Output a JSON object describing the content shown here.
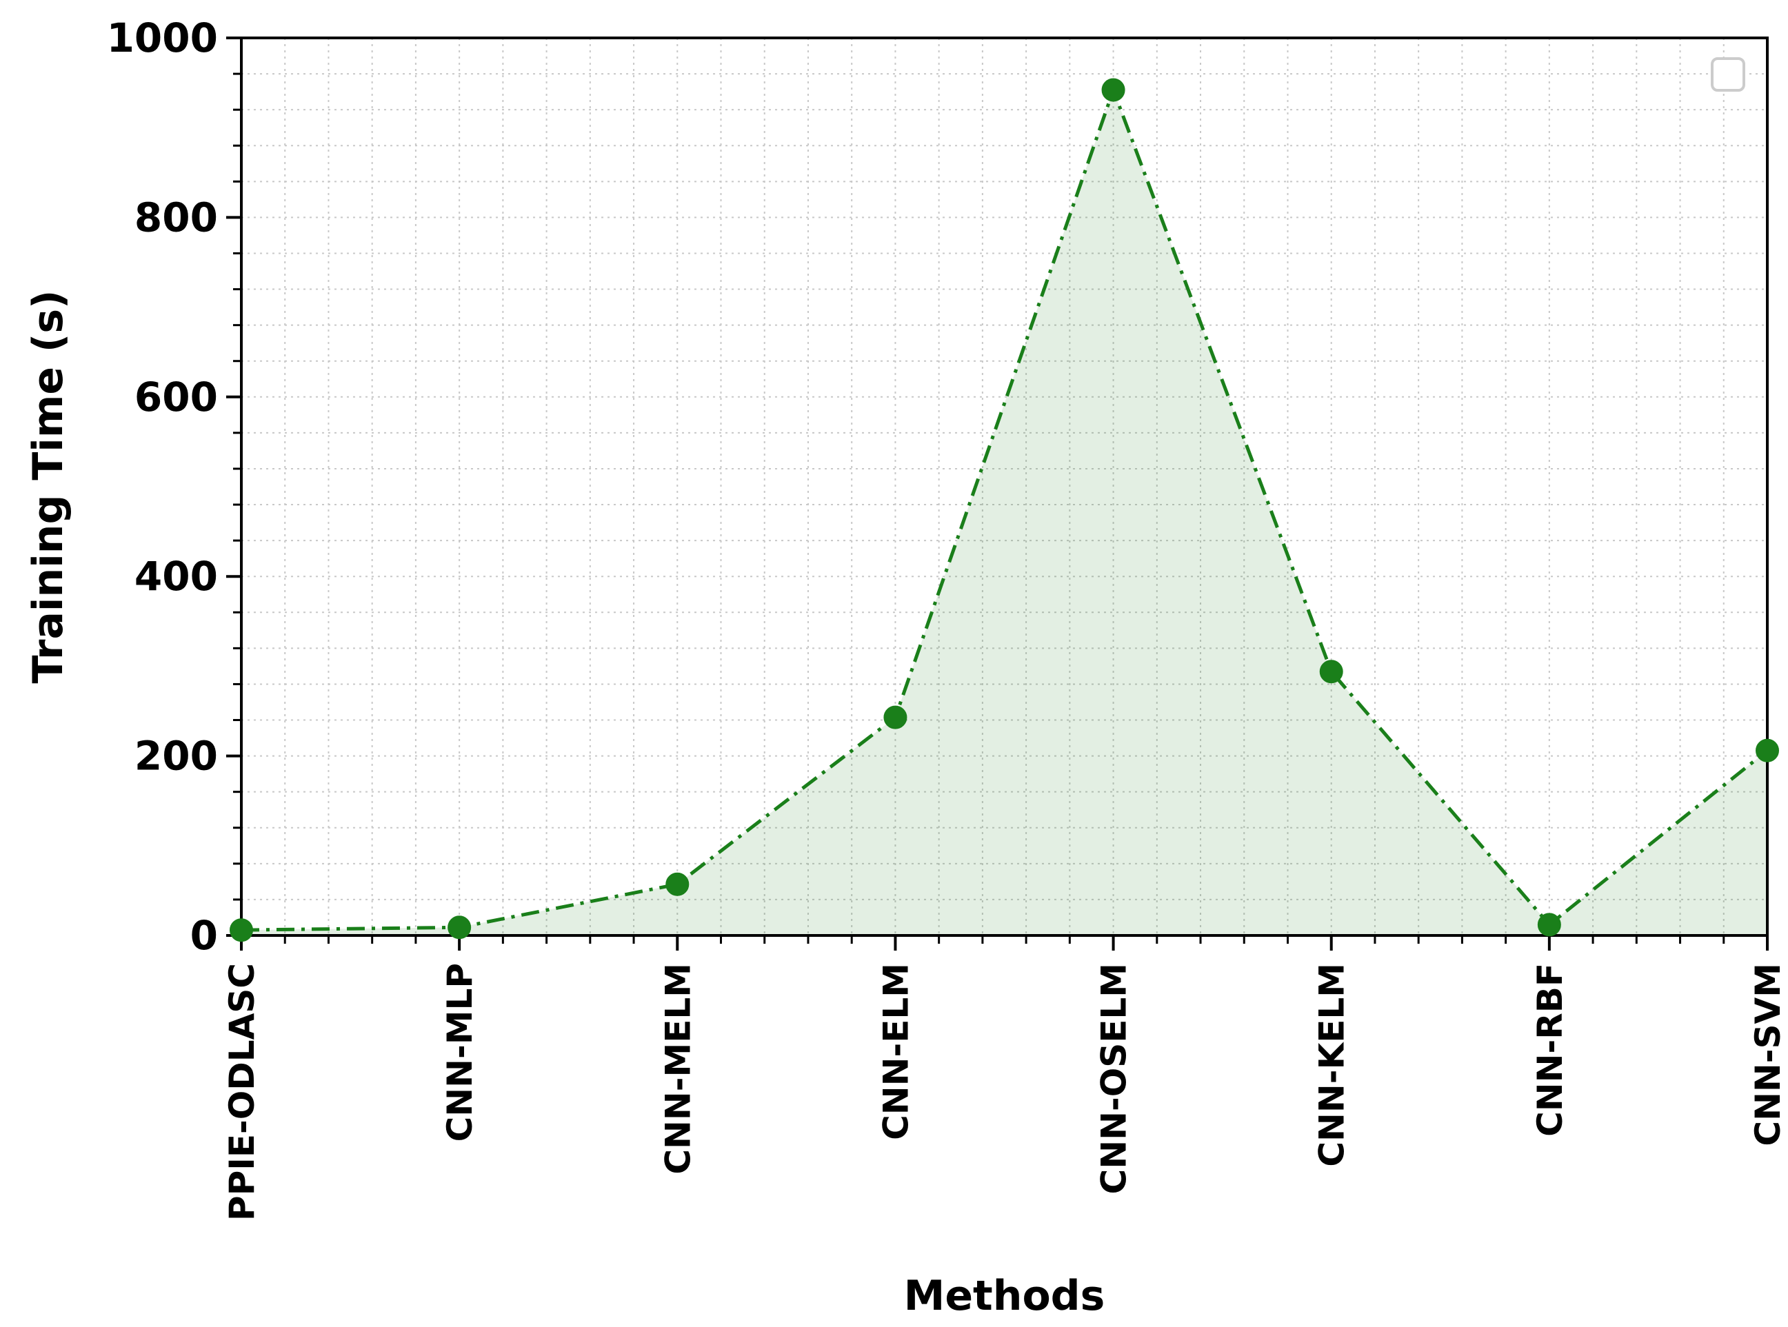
{
  "chart_data": {
    "type": "area",
    "title": "",
    "xlabel": "Methods",
    "ylabel": "Training Time (s)",
    "categories": [
      "PPIE-ODLASC",
      "CNN-MLP",
      "CNN-MELM",
      "CNN-ELM",
      "CNN-OSELM",
      "CNN-KELM",
      "CNN-RBF",
      "CNN-SVM"
    ],
    "series": [
      {
        "values": [
          6,
          9,
          57,
          243,
          942,
          294,
          12,
          206
        ],
        "color": "#1a7f1a"
      }
    ],
    "ylim": [
      0,
      1000
    ],
    "yticks": [
      "0",
      "200",
      "400",
      "600",
      "800",
      "1000"
    ],
    "grid": true,
    "minor_grid": true,
    "legend": "top-right (empty box)",
    "line_style": "dash-dot",
    "marker": "circle",
    "fill_color": "#1a7f1a",
    "fill_opacity": 0.12
  }
}
